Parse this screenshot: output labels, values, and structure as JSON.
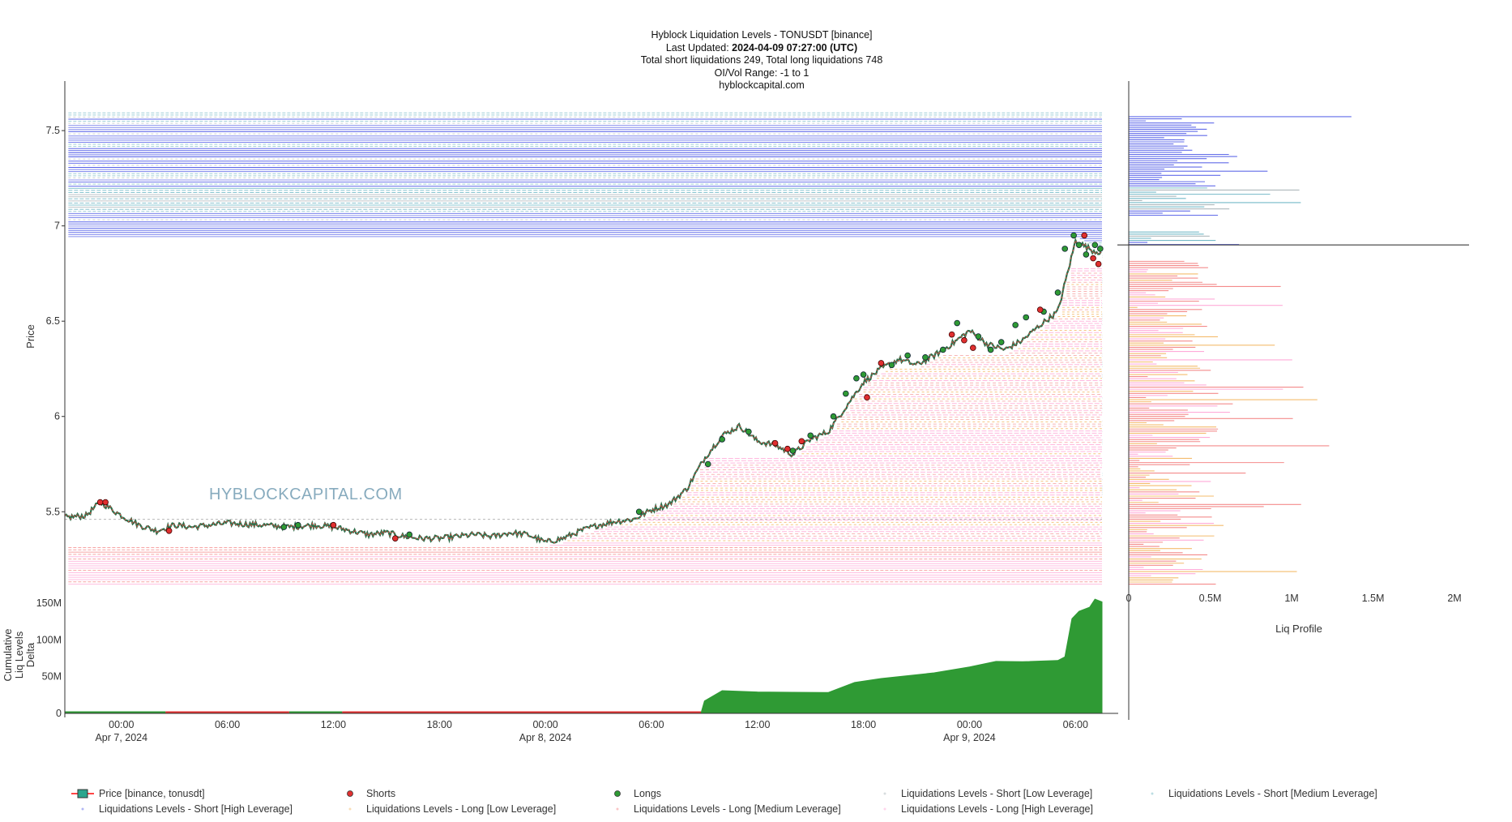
{
  "header": {
    "line1": "Hyblock Liquidation Levels - TONUSDT [binance]",
    "updated_label": "Last Updated: ",
    "updated_value": "2024-04-09 07:27:00 (UTC)",
    "line3": "Total short liquidations 249, Total long liquidations 748",
    "line4": "OI/Vol Range: -1 to 1",
    "line5": "hyblockcapital.com"
  },
  "watermark": "HYBLOCKCAPITAL.COM",
  "colors": {
    "short_high": "#1f2ee0",
    "short_medium": "#3b9db0",
    "short_low": "#8c9aa0",
    "long_low": "#f0a030",
    "long_medium": "#f05a5a",
    "long_high": "#ff88c8",
    "delta": "#2f9a34",
    "delta_neg": "#e03030",
    "longs_marker": "#2f9a34",
    "shorts_marker": "#e03030",
    "price_up": "#2ca58d",
    "price_down": "#ff4444"
  },
  "chart_data": [
    {
      "type": "line",
      "name": "price-chart",
      "ylabel": "Price",
      "ylim": [
        5.08,
        7.76
      ],
      "x_ticks": [
        {
          "t": 0,
          "label": "00:00",
          "sub": "Apr 7, 2024"
        },
        {
          "t": 6,
          "label": "06:00",
          "sub": ""
        },
        {
          "t": 12,
          "label": "12:00",
          "sub": ""
        },
        {
          "t": 18,
          "label": "18:00",
          "sub": ""
        },
        {
          "t": 24,
          "label": "00:00",
          "sub": "Apr 8, 2024"
        },
        {
          "t": 30,
          "label": "06:00",
          "sub": ""
        },
        {
          "t": 36,
          "label": "12:00",
          "sub": ""
        },
        {
          "t": 42,
          "label": "18:00",
          "sub": ""
        },
        {
          "t": 48,
          "label": "00:00",
          "sub": "Apr 9, 2024"
        },
        {
          "t": 54,
          "label": "06:00",
          "sub": ""
        }
      ],
      "y_ticks": [
        5.5,
        6,
        6.5,
        7,
        7.5
      ],
      "xlim_hours": [
        -3.2,
        55.5
      ],
      "price": {
        "name": "Price [binance, tonusdt]",
        "t": [
          -3.2,
          -2,
          -1.2,
          -1,
          0,
          1,
          2,
          3,
          4,
          6,
          8,
          9.5,
          11,
          12,
          13,
          14,
          15,
          16,
          17,
          18,
          19,
          20,
          21,
          22,
          23,
          24,
          25,
          26,
          27,
          28,
          29,
          30,
          31,
          32,
          33,
          34,
          35,
          36,
          37,
          38,
          39,
          40,
          41,
          42,
          43,
          44,
          45,
          46,
          47,
          48,
          49,
          50,
          51,
          52,
          53,
          54,
          55,
          55.5
        ],
        "y": [
          5.47,
          5.48,
          5.55,
          5.54,
          5.48,
          5.43,
          5.4,
          5.43,
          5.42,
          5.44,
          5.43,
          5.42,
          5.43,
          5.42,
          5.4,
          5.38,
          5.39,
          5.37,
          5.36,
          5.36,
          5.37,
          5.38,
          5.37,
          5.39,
          5.38,
          5.34,
          5.36,
          5.4,
          5.43,
          5.45,
          5.46,
          5.51,
          5.54,
          5.62,
          5.78,
          5.9,
          5.95,
          5.87,
          5.85,
          5.8,
          5.88,
          5.92,
          6.05,
          6.18,
          6.25,
          6.3,
          6.27,
          6.32,
          6.38,
          6.45,
          6.38,
          6.35,
          6.4,
          6.48,
          6.55,
          6.92,
          6.87,
          6.86
        ]
      },
      "shorts_markers": {
        "name": "Shorts",
        "t": [
          -1.2,
          -0.9,
          2.7,
          12,
          15.5,
          37,
          37.7,
          38.5,
          42.2,
          43,
          47,
          47.7,
          48.2,
          52,
          54.5,
          55,
          55.3
        ],
        "y": [
          5.55,
          5.55,
          5.4,
          5.43,
          5.36,
          5.86,
          5.83,
          5.87,
          6.1,
          6.28,
          6.43,
          6.4,
          6.36,
          6.56,
          6.95,
          6.83,
          6.8
        ]
      },
      "longs_markers": {
        "name": "Longs",
        "t": [
          9.2,
          10,
          16.3,
          29.3,
          33.2,
          34,
          35.5,
          38,
          39,
          40.3,
          41,
          41.6,
          42,
          43.6,
          44.5,
          45.5,
          46.5,
          47.3,
          48.5,
          49.2,
          49.8,
          50.6,
          51.2,
          52.2,
          53,
          53.4,
          53.9,
          54.2,
          54.6,
          55.1,
          55.4
        ],
        "y": [
          5.42,
          5.43,
          5.38,
          5.5,
          5.75,
          5.88,
          5.92,
          5.82,
          5.9,
          6.0,
          6.12,
          6.2,
          6.22,
          6.27,
          6.32,
          6.31,
          6.35,
          6.49,
          6.42,
          6.35,
          6.39,
          6.48,
          6.52,
          6.55,
          6.65,
          6.88,
          6.95,
          6.9,
          6.85,
          6.9,
          6.88
        ]
      },
      "liquidation_series": [
        {
          "name": "Liquidations Levels - Short [Low Leverage]",
          "color": "#8c9aa0"
        },
        {
          "name": "Liquidations Levels - Short [Medium Leverage]",
          "color": "#3b9db0"
        },
        {
          "name": "Liquidations Levels - Short [High Leverage]",
          "color": "#1f2ee0"
        },
        {
          "name": "Liquidations Levels - Long [Low Leverage]",
          "color": "#f0a030"
        },
        {
          "name": "Liquidations Levels - Long [Medium Leverage]",
          "color": "#f05a5a"
        },
        {
          "name": "Liquidations Levels - Long [High Leverage]",
          "color": "#ff88c8"
        }
      ]
    },
    {
      "type": "area",
      "name": "cumulative-delta",
      "ylabel": "Cumulative Liq Levels Delta",
      "ylim": [
        0,
        160
      ],
      "y_ticks": [
        {
          "v": 0,
          "label": "0"
        },
        {
          "v": 50,
          "label": "50M"
        },
        {
          "v": 100,
          "label": "100M"
        },
        {
          "v": 150,
          "label": "150M"
        }
      ],
      "t": [
        -3.2,
        8,
        9,
        14,
        20,
        25,
        32.8,
        33,
        34,
        36,
        38,
        40,
        41.5,
        43,
        46,
        48,
        49.5,
        51,
        53,
        53.4,
        53.8,
        54.2,
        54.8,
        55.1,
        55.5
      ],
      "values": [
        1,
        1,
        -1,
        1,
        -1,
        -1,
        -1,
        15,
        30,
        30,
        28,
        30,
        42,
        46,
        56,
        62,
        70,
        72,
        72,
        78,
        130,
        140,
        145,
        155,
        150
      ]
    },
    {
      "type": "bar",
      "name": "liq-profile",
      "xlabel": "Liq Profile",
      "xlim": [
        0,
        2
      ],
      "x_ticks": [
        {
          "v": 0,
          "label": "0"
        },
        {
          "v": 0.5,
          "label": "0.5M"
        },
        {
          "v": 1,
          "label": "1M"
        },
        {
          "v": 1.5,
          "label": "1.5M"
        },
        {
          "v": 2,
          "label": "2M"
        }
      ],
      "current_price": 6.9
    }
  ],
  "legend": [
    {
      "label": "Price [binance, tonusdt]",
      "kind": "candle"
    },
    {
      "label": "Shorts",
      "kind": "dot",
      "color": "#e03030"
    },
    {
      "label": "Longs",
      "kind": "dot",
      "color": "#2f9a34"
    },
    {
      "label": "Liquidations Levels - Short [Low Leverage]",
      "kind": "faint",
      "color": "#8c9aa0"
    },
    {
      "label": "Liquidations Levels - Short [Medium Leverage]",
      "kind": "faint",
      "color": "#3b9db0"
    },
    {
      "label": "Liquidations Levels - Short [High Leverage]",
      "kind": "faint",
      "color": "#1f2ee0"
    },
    {
      "label": "Liquidations Levels - Long [Low Leverage]",
      "kind": "faint",
      "color": "#f0a030"
    },
    {
      "label": "Liquidations Levels - Long [Medium Leverage]",
      "kind": "faint",
      "color": "#f05a5a"
    },
    {
      "label": "Liquidations Levels - Long [High Leverage]",
      "kind": "faint",
      "color": "#ff88c8"
    }
  ]
}
